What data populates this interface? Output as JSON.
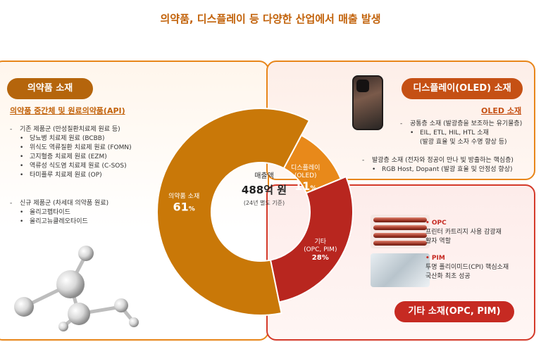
{
  "title": "의약품, 디스플레이 등 다양한 산업에서 매출 발생",
  "colors": {
    "pharma": "#c97808",
    "display": "#e8891a",
    "other": "#b8261f",
    "accent": "#c2620a"
  },
  "pharma": {
    "badge": "의약품 소재",
    "api_heading": "의약품 중간체 및 원료의약품(API)",
    "existing_lead": "기존 제품군 (만성질환치료제 원료 등)",
    "existing_items": [
      "당뇨병 치료제 원료 (BCBB)",
      "위식도 역류질환 치료제 원료 (FOMN)",
      "고지혈증 치료제 원료 (EZM)",
      "역류성 식도염 치료제 원료 (C-SOS)",
      "타미플루 치료제 원료 (OP)"
    ],
    "new_lead": "신규 제품군 (차세대 의약품 원료)",
    "new_items": [
      "올리고펩타이드",
      "올리고뉴클레오타이드"
    ]
  },
  "display": {
    "badge": "디스플레이(OLED) 소재",
    "oled_heading": "OLED 소재",
    "common_lead": "공통층 소재 (발광층을 보조하는 유기물층)",
    "common_item": "EIL, ETL, HIL, HTL 소재",
    "common_item_cont": "(발광 효율 및 소자 수명 향상 등)",
    "emit_lead": "발광층 소재 (전자와 정공이 만나 빛 방출하는 핵심층)",
    "emit_item": "RGB Host, Dopant (발광 효율 및 안정성 향상)"
  },
  "other": {
    "badge": "기타 소재(OPC, PIM)",
    "opc_name": "OPC",
    "opc_desc1": "프린터 카트리지 사용 감광재",
    "opc_desc2": "활자 역할",
    "pim_name": "PIM",
    "pim_desc1": "투명 폴리이미드(CPI) 핵심소재",
    "pim_desc2": "국산화 최초 성공"
  },
  "chart_data": {
    "type": "pie",
    "title": "매출액",
    "center_value": "488억 원",
    "center_note": "(24년 별도 기준)",
    "slices": [
      {
        "name": "의약품 소재",
        "label_line1": "의약품 소재",
        "label_line2": "",
        "value": 61,
        "pct_text": "61",
        "unit": "%"
      },
      {
        "name": "디스플레이(OLED)",
        "label_line1": "디스플레이",
        "label_line2": "(OLED)",
        "value": 11,
        "pct_text": "11",
        "unit": "%"
      },
      {
        "name": "기타(OPC, PIM)",
        "label_line1": "기타",
        "label_line2": "(OPC, PIM)",
        "value": 28,
        "pct_text": "28%",
        "unit": ""
      }
    ]
  }
}
